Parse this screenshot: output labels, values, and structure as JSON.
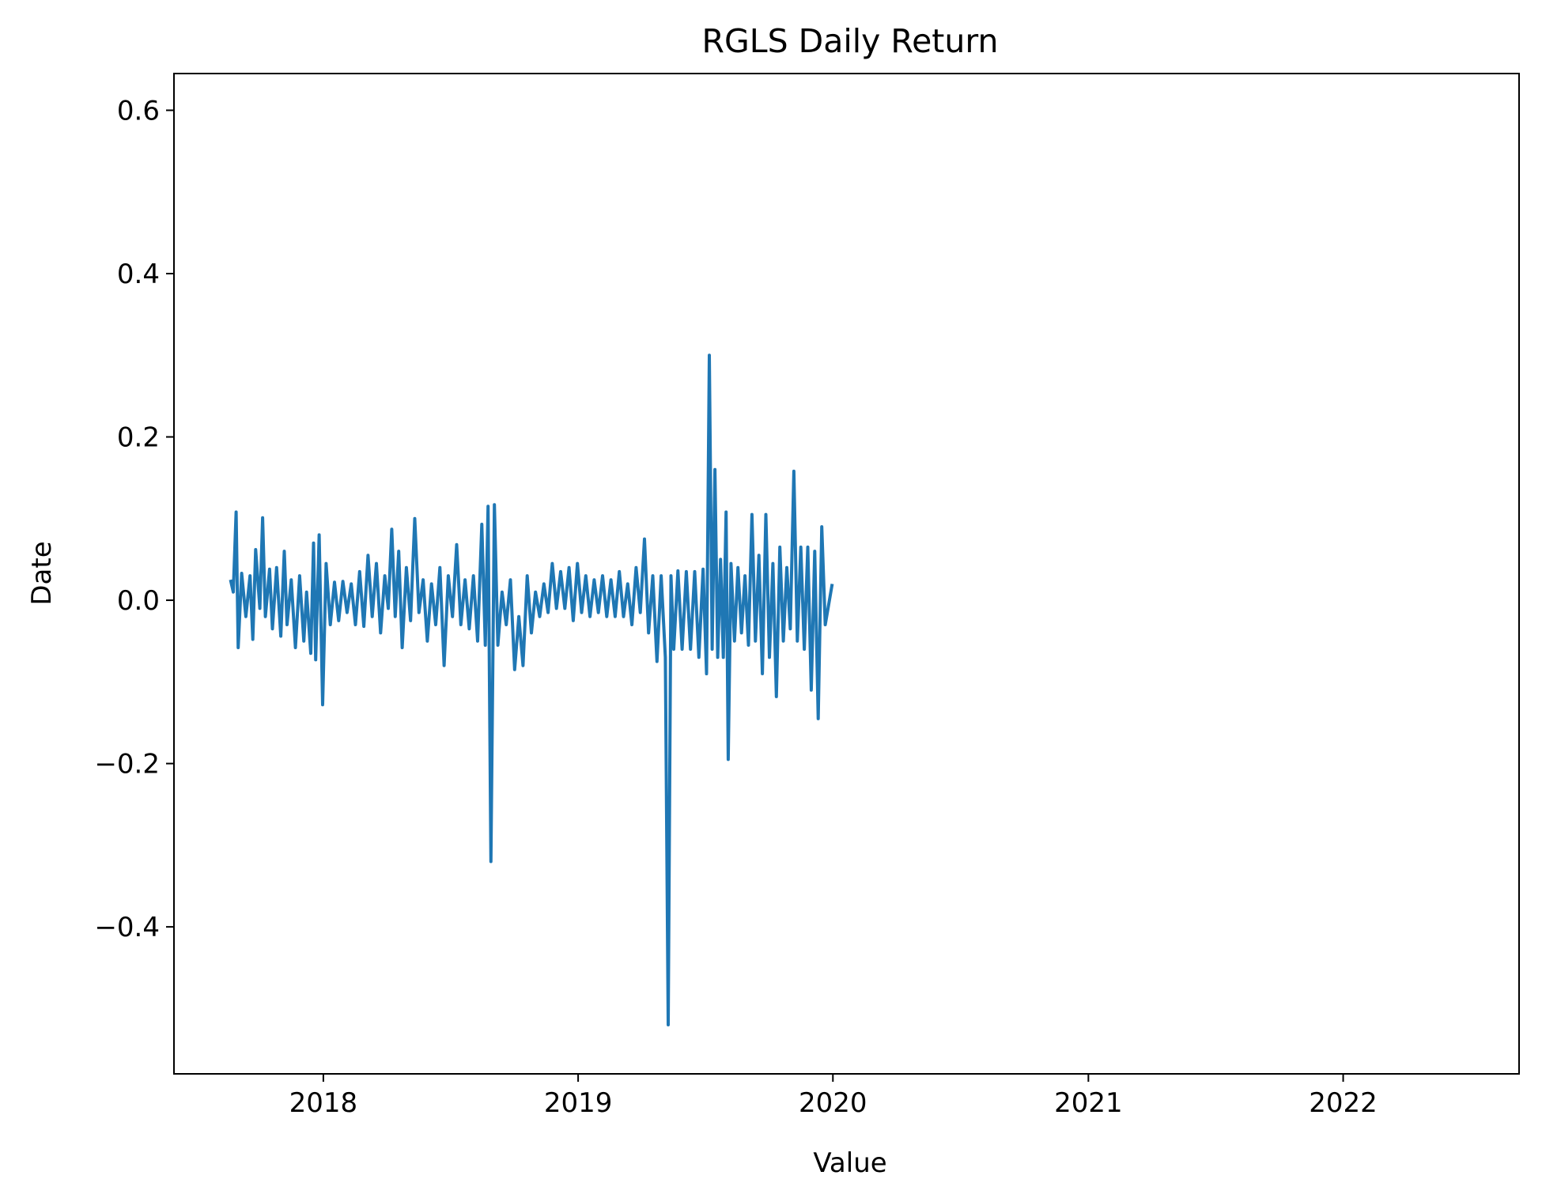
{
  "chart_data": {
    "type": "line",
    "title": "RGLS Daily Return",
    "xlabel": "Value",
    "ylabel": "Date",
    "xlim": [
      "2017-06-01",
      "2022-09-10"
    ],
    "ylim": [
      -0.58,
      0.645
    ],
    "x_ticks": [
      "2018",
      "2019",
      "2020",
      "2021",
      "2022"
    ],
    "y_ticks": [
      -0.4,
      -0.2,
      0.0,
      0.2,
      0.4,
      0.6
    ],
    "y_tick_labels": [
      "−0.4",
      "−0.2",
      "0.0",
      "0.2",
      "0.4",
      "0.6"
    ],
    "grid": false,
    "legend": "none",
    "series": [
      {
        "color": "#1f77b4",
        "points": [
          [
            "2017-08-21",
            0.025
          ],
          [
            "2017-08-25",
            0.01
          ],
          [
            "2017-08-29",
            0.108
          ],
          [
            "2017-09-01",
            -0.058
          ],
          [
            "2017-09-06",
            0.033
          ],
          [
            "2017-09-12",
            -0.02
          ],
          [
            "2017-09-18",
            0.03
          ],
          [
            "2017-09-22",
            -0.048
          ],
          [
            "2017-09-26",
            0.062
          ],
          [
            "2017-10-02",
            -0.01
          ],
          [
            "2017-10-06",
            0.101
          ],
          [
            "2017-10-10",
            -0.02
          ],
          [
            "2017-10-16",
            0.038
          ],
          [
            "2017-10-20",
            -0.035
          ],
          [
            "2017-10-26",
            0.04
          ],
          [
            "2017-11-01",
            -0.044
          ],
          [
            "2017-11-06",
            0.06
          ],
          [
            "2017-11-10",
            -0.03
          ],
          [
            "2017-11-16",
            0.025
          ],
          [
            "2017-11-22",
            -0.058
          ],
          [
            "2017-11-28",
            0.03
          ],
          [
            "2017-12-04",
            -0.05
          ],
          [
            "2017-12-08",
            0.01
          ],
          [
            "2017-12-14",
            -0.065
          ],
          [
            "2017-12-18",
            0.07
          ],
          [
            "2017-12-21",
            -0.073
          ],
          [
            "2017-12-26",
            0.08
          ],
          [
            "2017-12-31",
            -0.128
          ],
          [
            "2018-01-05",
            0.045
          ],
          [
            "2018-01-11",
            -0.03
          ],
          [
            "2018-01-17",
            0.022
          ],
          [
            "2018-01-23",
            -0.025
          ],
          [
            "2018-01-29",
            0.023
          ],
          [
            "2018-02-04",
            -0.015
          ],
          [
            "2018-02-10",
            0.02
          ],
          [
            "2018-02-16",
            -0.03
          ],
          [
            "2018-02-22",
            0.035
          ],
          [
            "2018-02-28",
            -0.032
          ],
          [
            "2018-03-06",
            0.055
          ],
          [
            "2018-03-12",
            -0.02
          ],
          [
            "2018-03-18",
            0.045
          ],
          [
            "2018-03-24",
            -0.04
          ],
          [
            "2018-03-30",
            0.03
          ],
          [
            "2018-04-04",
            -0.01
          ],
          [
            "2018-04-09",
            0.087
          ],
          [
            "2018-04-14",
            -0.02
          ],
          [
            "2018-04-19",
            0.06
          ],
          [
            "2018-04-24",
            -0.058
          ],
          [
            "2018-04-30",
            0.04
          ],
          [
            "2018-05-06",
            -0.025
          ],
          [
            "2018-05-12",
            0.1
          ],
          [
            "2018-05-18",
            -0.015
          ],
          [
            "2018-05-24",
            0.025
          ],
          [
            "2018-05-30",
            -0.05
          ],
          [
            "2018-06-05",
            0.02
          ],
          [
            "2018-06-11",
            -0.03
          ],
          [
            "2018-06-17",
            0.04
          ],
          [
            "2018-06-23",
            -0.08
          ],
          [
            "2018-06-29",
            0.03
          ],
          [
            "2018-07-05",
            -0.02
          ],
          [
            "2018-07-11",
            0.068
          ],
          [
            "2018-07-17",
            -0.03
          ],
          [
            "2018-07-23",
            0.025
          ],
          [
            "2018-07-29",
            -0.035
          ],
          [
            "2018-08-04",
            0.03
          ],
          [
            "2018-08-10",
            -0.05
          ],
          [
            "2018-08-16",
            0.093
          ],
          [
            "2018-08-21",
            -0.055
          ],
          [
            "2018-08-25",
            0.115
          ],
          [
            "2018-08-29",
            -0.32
          ],
          [
            "2018-09-03",
            0.117
          ],
          [
            "2018-09-08",
            -0.055
          ],
          [
            "2018-09-14",
            0.01
          ],
          [
            "2018-09-20",
            -0.03
          ],
          [
            "2018-09-26",
            0.025
          ],
          [
            "2018-10-02",
            -0.085
          ],
          [
            "2018-10-08",
            -0.02
          ],
          [
            "2018-10-14",
            -0.08
          ],
          [
            "2018-10-20",
            0.03
          ],
          [
            "2018-10-26",
            -0.04
          ],
          [
            "2018-11-01",
            0.01
          ],
          [
            "2018-11-07",
            -0.02
          ],
          [
            "2018-11-13",
            0.02
          ],
          [
            "2018-11-19",
            -0.015
          ],
          [
            "2018-11-25",
            0.045
          ],
          [
            "2018-12-01",
            -0.01
          ],
          [
            "2018-12-07",
            0.035
          ],
          [
            "2018-12-13",
            -0.01
          ],
          [
            "2018-12-19",
            0.04
          ],
          [
            "2018-12-25",
            -0.025
          ],
          [
            "2018-12-31",
            0.045
          ],
          [
            "2019-01-06",
            -0.015
          ],
          [
            "2019-01-12",
            0.03
          ],
          [
            "2019-01-18",
            -0.02
          ],
          [
            "2019-01-24",
            0.025
          ],
          [
            "2019-01-30",
            -0.015
          ],
          [
            "2019-02-05",
            0.03
          ],
          [
            "2019-02-11",
            -0.02
          ],
          [
            "2019-02-17",
            0.025
          ],
          [
            "2019-02-23",
            -0.02
          ],
          [
            "2019-03-01",
            0.035
          ],
          [
            "2019-03-07",
            -0.02
          ],
          [
            "2019-03-13",
            0.02
          ],
          [
            "2019-03-19",
            -0.03
          ],
          [
            "2019-03-25",
            0.04
          ],
          [
            "2019-03-31",
            -0.015
          ],
          [
            "2019-04-06",
            0.075
          ],
          [
            "2019-04-12",
            -0.04
          ],
          [
            "2019-04-18",
            0.03
          ],
          [
            "2019-04-24",
            -0.075
          ],
          [
            "2019-04-30",
            0.03
          ],
          [
            "2019-05-06",
            -0.07
          ],
          [
            "2019-05-10",
            -0.52
          ],
          [
            "2019-05-14",
            0.03
          ],
          [
            "2019-05-18",
            -0.06
          ],
          [
            "2019-05-24",
            0.036
          ],
          [
            "2019-05-30",
            -0.06
          ],
          [
            "2019-06-05",
            0.035
          ],
          [
            "2019-06-11",
            -0.06
          ],
          [
            "2019-06-17",
            0.035
          ],
          [
            "2019-06-23",
            -0.07
          ],
          [
            "2019-06-29",
            0.038
          ],
          [
            "2019-07-04",
            -0.09
          ],
          [
            "2019-07-08",
            0.3
          ],
          [
            "2019-07-12",
            -0.06
          ],
          [
            "2019-07-16",
            0.16
          ],
          [
            "2019-07-20",
            -0.07
          ],
          [
            "2019-07-24",
            0.05
          ],
          [
            "2019-07-28",
            -0.07
          ],
          [
            "2019-08-01",
            0.108
          ],
          [
            "2019-08-04",
            -0.195
          ],
          [
            "2019-08-08",
            0.045
          ],
          [
            "2019-08-13",
            -0.05
          ],
          [
            "2019-08-18",
            0.04
          ],
          [
            "2019-08-23",
            -0.04
          ],
          [
            "2019-08-28",
            0.03
          ],
          [
            "2019-09-02",
            -0.055
          ],
          [
            "2019-09-07",
            0.105
          ],
          [
            "2019-09-12",
            -0.05
          ],
          [
            "2019-09-17",
            0.055
          ],
          [
            "2019-09-22",
            -0.09
          ],
          [
            "2019-09-27",
            0.105
          ],
          [
            "2019-10-02",
            -0.07
          ],
          [
            "2019-10-07",
            0.045
          ],
          [
            "2019-10-12",
            -0.118
          ],
          [
            "2019-10-17",
            0.065
          ],
          [
            "2019-10-22",
            -0.05
          ],
          [
            "2019-10-27",
            0.04
          ],
          [
            "2019-11-01",
            -0.035
          ],
          [
            "2019-11-06",
            0.158
          ],
          [
            "2019-11-11",
            -0.05
          ],
          [
            "2019-11-16",
            0.065
          ],
          [
            "2019-11-21",
            -0.06
          ],
          [
            "2019-11-26",
            0.065
          ],
          [
            "2019-12-01",
            -0.11
          ],
          [
            "2019-12-06",
            0.06
          ],
          [
            "2019-12-11",
            -0.145
          ],
          [
            "2019-12-16",
            0.09
          ],
          [
            "2019-12-21",
            -0.03
          ],
          [
            "2019-12-31",
            0.02
          ]
        ]
      }
    ]
  }
}
